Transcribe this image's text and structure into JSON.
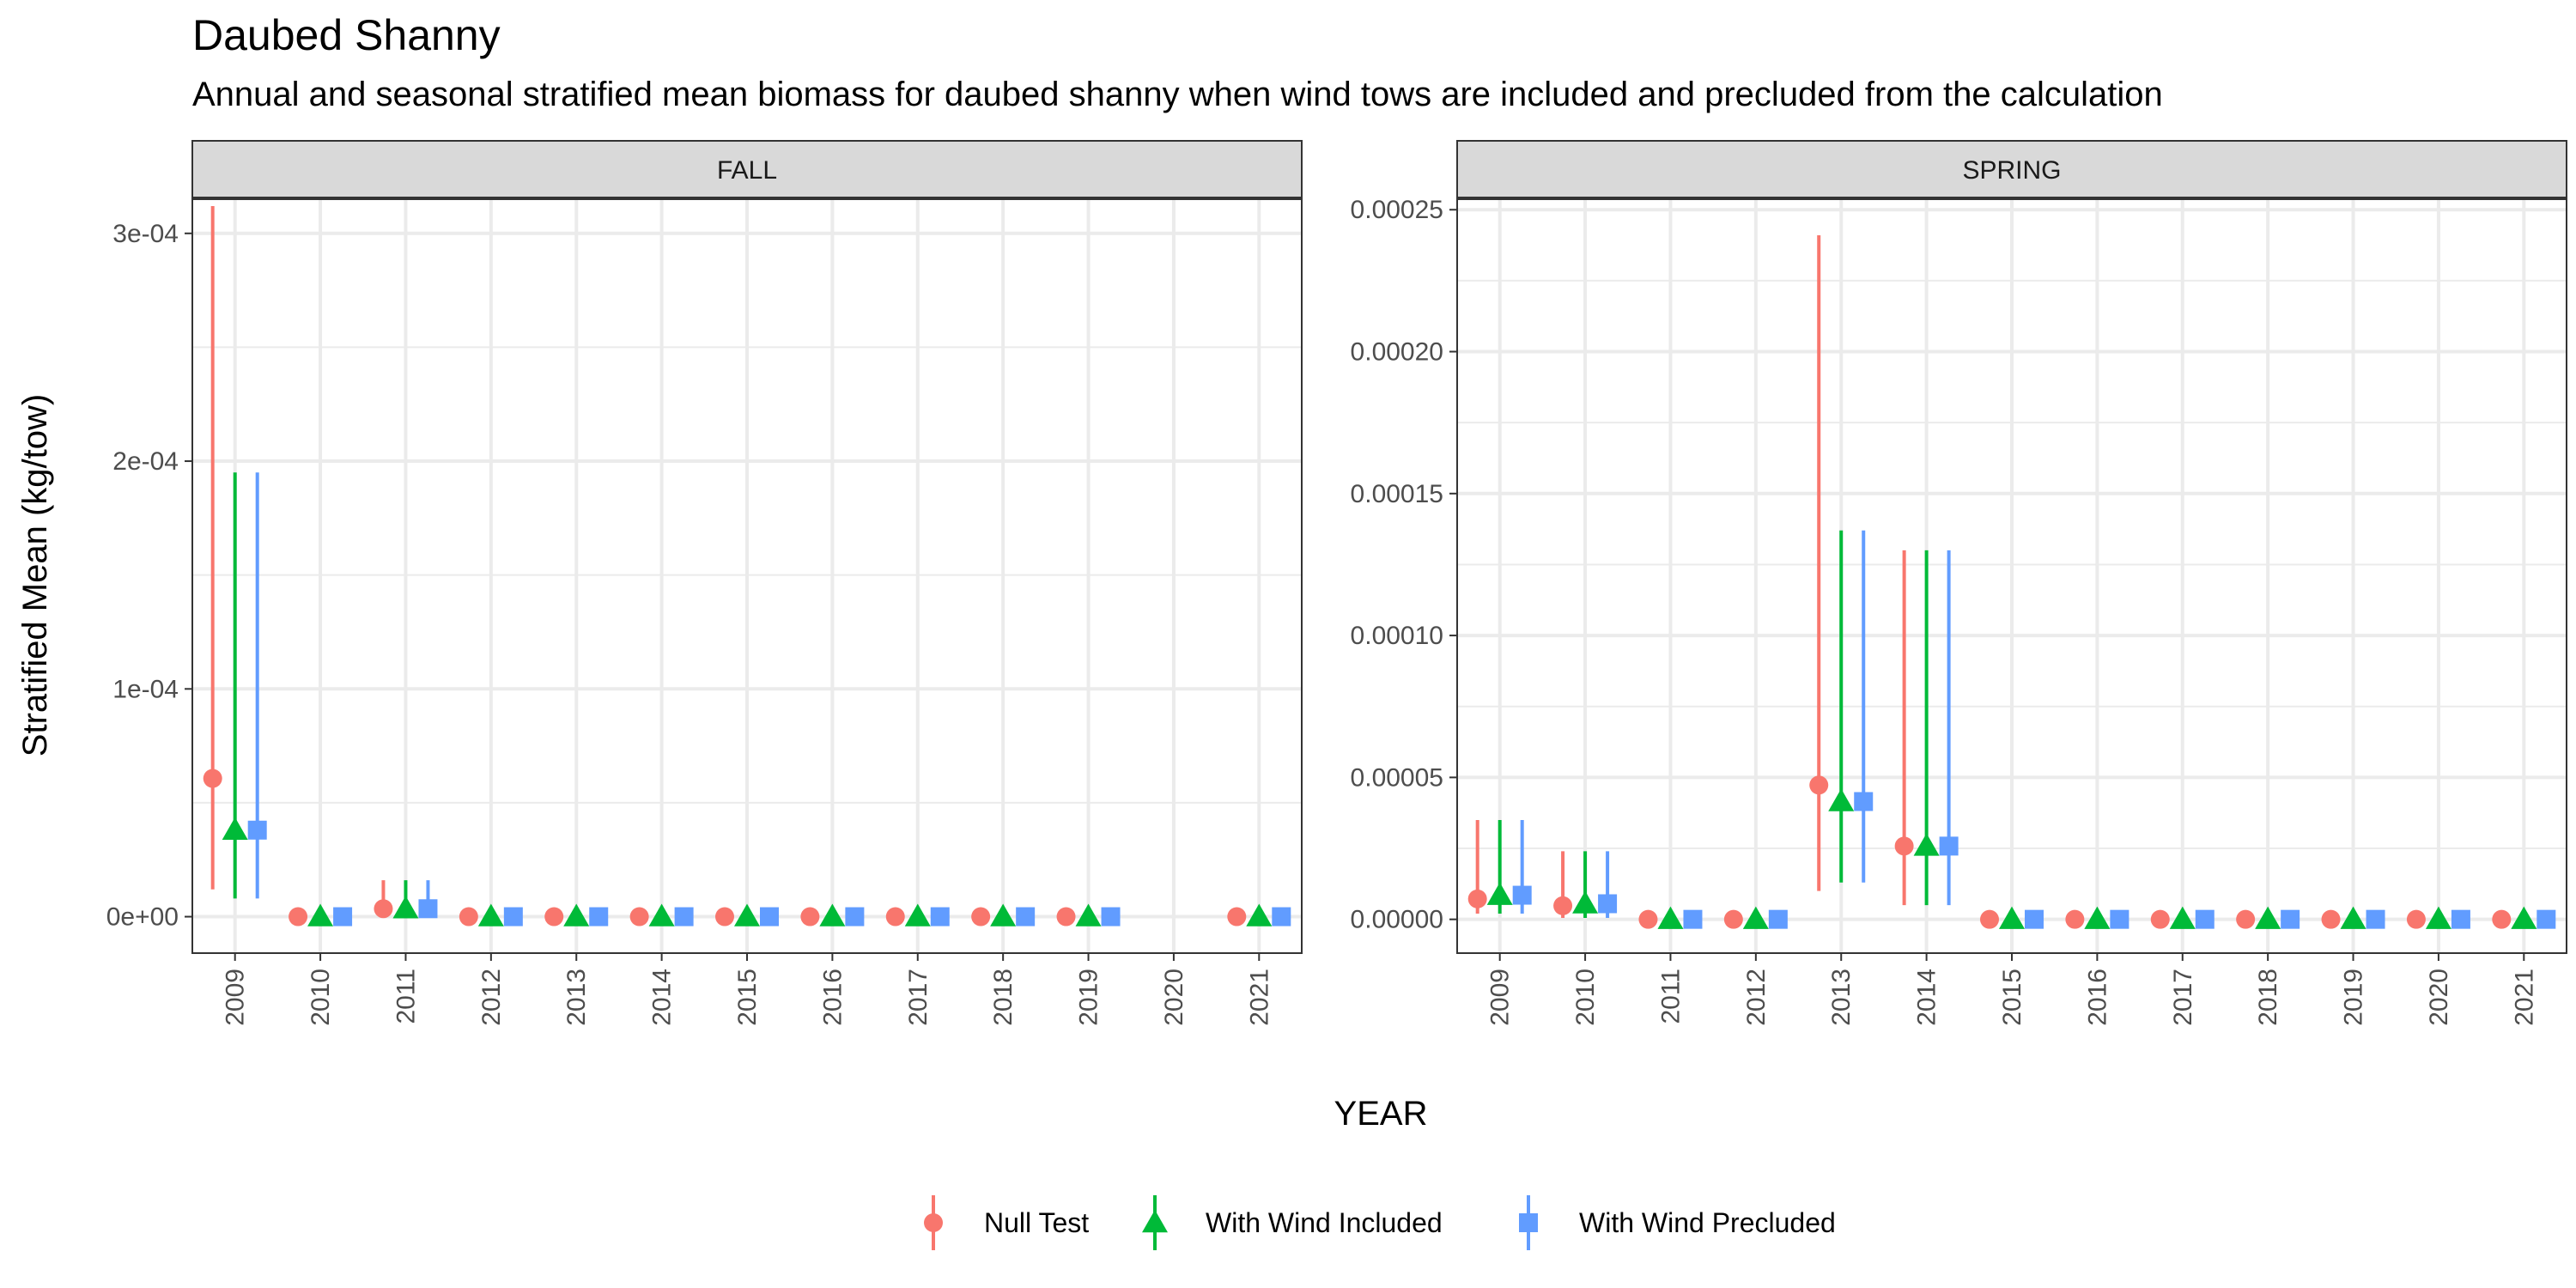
{
  "colors": {
    "null_test": "#F8766D",
    "with_wind_included": "#00BA38",
    "with_wind_precluded": "#619CFF",
    "strip_fill": "#D9D9D9",
    "grid": "#EBEBEB"
  },
  "chart_data": {
    "type": "scatter",
    "title": "Daubed Shanny",
    "subtitle": "Annual and seasonal stratified mean biomass for daubed shanny when wind tows are included and precluded from the calculation",
    "xlabel": "YEAR",
    "ylabel": "Stratified Mean (kg/tow)",
    "legend_position": "bottom",
    "grid": true,
    "x_categories": [
      "2009",
      "2010",
      "2011",
      "2012",
      "2013",
      "2014",
      "2015",
      "2016",
      "2017",
      "2018",
      "2019",
      "2020",
      "2021"
    ],
    "series_names": [
      "Null Test",
      "With Wind Included",
      "With Wind Precluded"
    ],
    "series_markers": [
      "circle",
      "triangle",
      "square"
    ],
    "panels": [
      {
        "name": "FALL",
        "ylim": [
          -1.6e-05,
          0.000315
        ],
        "y_ticks": [
          0,
          0.0001,
          0.0002,
          0.0003
        ],
        "y_tick_labels": [
          "0e+00",
          "1e-04",
          "2e-04",
          "3e-04"
        ],
        "series": [
          {
            "name": "Null Test",
            "points": [
              {
                "x": "2009",
                "y": 6.07e-05,
                "lo": 1.2e-05,
                "hi": 0.000312
              },
              {
                "x": "2010",
                "y": 0,
                "lo": 0,
                "hi": 0
              },
              {
                "x": "2011",
                "y": 3.5e-06,
                "lo": 0,
                "hi": 1.6e-05
              },
              {
                "x": "2012",
                "y": 0,
                "lo": 0,
                "hi": 0
              },
              {
                "x": "2013",
                "y": 0,
                "lo": 0,
                "hi": 0
              },
              {
                "x": "2014",
                "y": 0,
                "lo": 0,
                "hi": 0
              },
              {
                "x": "2015",
                "y": 0,
                "lo": 0,
                "hi": 0
              },
              {
                "x": "2016",
                "y": 0,
                "lo": 0,
                "hi": 0
              },
              {
                "x": "2017",
                "y": 0,
                "lo": 0,
                "hi": 0
              },
              {
                "x": "2018",
                "y": 0,
                "lo": 0,
                "hi": 0
              },
              {
                "x": "2019",
                "y": 0,
                "lo": 0,
                "hi": 0
              },
              {
                "x": "2021",
                "y": 0,
                "lo": 0,
                "hi": 0
              }
            ]
          },
          {
            "name": "With Wind Included",
            "points": [
              {
                "x": "2009",
                "y": 3.8e-05,
                "lo": 8e-06,
                "hi": 0.000195
              },
              {
                "x": "2010",
                "y": 0,
                "lo": 0,
                "hi": 0
              },
              {
                "x": "2011",
                "y": 3.5e-06,
                "lo": 0,
                "hi": 1.6e-05
              },
              {
                "x": "2012",
                "y": 0,
                "lo": 0,
                "hi": 0
              },
              {
                "x": "2013",
                "y": 0,
                "lo": 0,
                "hi": 0
              },
              {
                "x": "2014",
                "y": 0,
                "lo": 0,
                "hi": 0
              },
              {
                "x": "2015",
                "y": 0,
                "lo": 0,
                "hi": 0
              },
              {
                "x": "2016",
                "y": 0,
                "lo": 0,
                "hi": 0
              },
              {
                "x": "2017",
                "y": 0,
                "lo": 0,
                "hi": 0
              },
              {
                "x": "2018",
                "y": 0,
                "lo": 0,
                "hi": 0
              },
              {
                "x": "2019",
                "y": 0,
                "lo": 0,
                "hi": 0
              },
              {
                "x": "2021",
                "y": 0,
                "lo": 0,
                "hi": 0
              }
            ]
          },
          {
            "name": "With Wind Precluded",
            "points": [
              {
                "x": "2009",
                "y": 3.8e-05,
                "lo": 8e-06,
                "hi": 0.000195
              },
              {
                "x": "2010",
                "y": 0,
                "lo": 0,
                "hi": 0
              },
              {
                "x": "2011",
                "y": 3.5e-06,
                "lo": 0,
                "hi": 1.6e-05
              },
              {
                "x": "2012",
                "y": 0,
                "lo": 0,
                "hi": 0
              },
              {
                "x": "2013",
                "y": 0,
                "lo": 0,
                "hi": 0
              },
              {
                "x": "2014",
                "y": 0,
                "lo": 0,
                "hi": 0
              },
              {
                "x": "2015",
                "y": 0,
                "lo": 0,
                "hi": 0
              },
              {
                "x": "2016",
                "y": 0,
                "lo": 0,
                "hi": 0
              },
              {
                "x": "2017",
                "y": 0,
                "lo": 0,
                "hi": 0
              },
              {
                "x": "2018",
                "y": 0,
                "lo": 0,
                "hi": 0
              },
              {
                "x": "2019",
                "y": 0,
                "lo": 0,
                "hi": 0
              },
              {
                "x": "2021",
                "y": 0,
                "lo": 0,
                "hi": 0
              }
            ]
          }
        ]
      },
      {
        "name": "SPRING",
        "ylim": [
          -1.19e-05,
          0.0002537
        ],
        "y_ticks": [
          0,
          5e-05,
          0.0001,
          0.00015,
          0.0002,
          0.00025
        ],
        "y_tick_labels": [
          "0.00000",
          "0.00005",
          "0.00010",
          "0.00015",
          "0.00020",
          "0.00025"
        ],
        "series": [
          {
            "name": "Null Test",
            "points": [
              {
                "x": "2009",
                "y": 7.2e-06,
                "lo": 2e-06,
                "hi": 3.5e-05
              },
              {
                "x": "2010",
                "y": 4.8e-06,
                "lo": 5e-07,
                "hi": 2.4e-05
              },
              {
                "x": "2011",
                "y": 0,
                "lo": 0,
                "hi": 0
              },
              {
                "x": "2012",
                "y": 0,
                "lo": 0,
                "hi": 0
              },
              {
                "x": "2013",
                "y": 4.73e-05,
                "lo": 1e-05,
                "hi": 0.000241
              },
              {
                "x": "2014",
                "y": 2.58e-05,
                "lo": 5e-06,
                "hi": 0.00013
              },
              {
                "x": "2015",
                "y": 0,
                "lo": 0,
                "hi": 0
              },
              {
                "x": "2016",
                "y": 0,
                "lo": 0,
                "hi": 0
              },
              {
                "x": "2017",
                "y": 0,
                "lo": 0,
                "hi": 0
              },
              {
                "x": "2018",
                "y": 0,
                "lo": 0,
                "hi": 0
              },
              {
                "x": "2019",
                "y": 0,
                "lo": 0,
                "hi": 0
              },
              {
                "x": "2020",
                "y": 0,
                "lo": 0,
                "hi": 0
              },
              {
                "x": "2021",
                "y": 0,
                "lo": 0,
                "hi": 0
              }
            ]
          },
          {
            "name": "With Wind Included",
            "points": [
              {
                "x": "2009",
                "y": 8.5e-06,
                "lo": 2e-06,
                "hi": 3.5e-05
              },
              {
                "x": "2010",
                "y": 5.5e-06,
                "lo": 5e-07,
                "hi": 2.4e-05
              },
              {
                "x": "2011",
                "y": 0,
                "lo": 0,
                "hi": 0
              },
              {
                "x": "2012",
                "y": 0,
                "lo": 0,
                "hi": 0
              },
              {
                "x": "2013",
                "y": 4.15e-05,
                "lo": 1.3e-05,
                "hi": 0.000137
              },
              {
                "x": "2014",
                "y": 2.58e-05,
                "lo": 5e-06,
                "hi": 0.00013
              },
              {
                "x": "2015",
                "y": 0,
                "lo": 0,
                "hi": 0
              },
              {
                "x": "2016",
                "y": 0,
                "lo": 0,
                "hi": 0
              },
              {
                "x": "2017",
                "y": 0,
                "lo": 0,
                "hi": 0
              },
              {
                "x": "2018",
                "y": 0,
                "lo": 0,
                "hi": 0
              },
              {
                "x": "2019",
                "y": 0,
                "lo": 0,
                "hi": 0
              },
              {
                "x": "2020",
                "y": 0,
                "lo": 0,
                "hi": 0
              },
              {
                "x": "2021",
                "y": 0,
                "lo": 0,
                "hi": 0
              }
            ]
          },
          {
            "name": "With Wind Precluded",
            "points": [
              {
                "x": "2009",
                "y": 8.5e-06,
                "lo": 2e-06,
                "hi": 3.5e-05
              },
              {
                "x": "2010",
                "y": 5.5e-06,
                "lo": 5e-07,
                "hi": 2.4e-05
              },
              {
                "x": "2011",
                "y": 0,
                "lo": 0,
                "hi": 0
              },
              {
                "x": "2012",
                "y": 0,
                "lo": 0,
                "hi": 0
              },
              {
                "x": "2013",
                "y": 4.15e-05,
                "lo": 1.3e-05,
                "hi": 0.000137
              },
              {
                "x": "2014",
                "y": 2.58e-05,
                "lo": 5e-06,
                "hi": 0.00013
              },
              {
                "x": "2015",
                "y": 0,
                "lo": 0,
                "hi": 0
              },
              {
                "x": "2016",
                "y": 0,
                "lo": 0,
                "hi": 0
              },
              {
                "x": "2017",
                "y": 0,
                "lo": 0,
                "hi": 0
              },
              {
                "x": "2018",
                "y": 0,
                "lo": 0,
                "hi": 0
              },
              {
                "x": "2019",
                "y": 0,
                "lo": 0,
                "hi": 0
              },
              {
                "x": "2020",
                "y": 0,
                "lo": 0,
                "hi": 0
              },
              {
                "x": "2021",
                "y": 0,
                "lo": 0,
                "hi": 0
              }
            ]
          }
        ]
      }
    ]
  }
}
